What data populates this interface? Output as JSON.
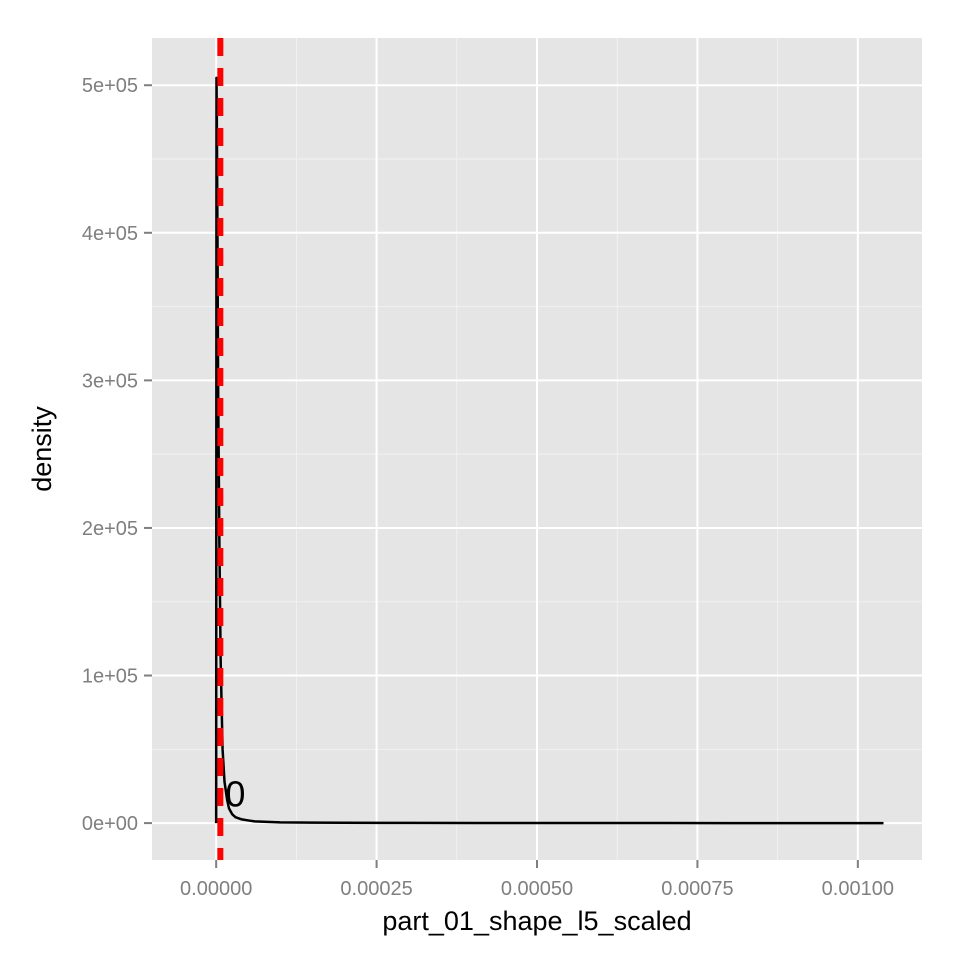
{
  "chart_data": {
    "type": "line",
    "title": "",
    "xlabel": "part_01_shape_l5_scaled",
    "ylabel": "density",
    "xlim": [
      -0.0001,
      0.0011
    ],
    "ylim": [
      -25000,
      532000
    ],
    "x_ticks": [
      {
        "value": 0.0,
        "label": "0.00000"
      },
      {
        "value": 0.00025,
        "label": "0.00025"
      },
      {
        "value": 0.0005,
        "label": "0.00050"
      },
      {
        "value": 0.00075,
        "label": "0.00075"
      },
      {
        "value": 0.001,
        "label": "0.00100"
      }
    ],
    "y_ticks": [
      {
        "value": 0,
        "label": "0e+00"
      },
      {
        "value": 100000,
        "label": "1e+05"
      },
      {
        "value": 200000,
        "label": "2e+05"
      },
      {
        "value": 300000,
        "label": "3e+05"
      },
      {
        "value": 400000,
        "label": "4e+05"
      },
      {
        "value": 500000,
        "label": "5e+05"
      }
    ],
    "grid": true,
    "background": "#e5e5e5",
    "series": [
      {
        "color": "#000000",
        "x": [
          0.0,
          5e-07,
          1e-06,
          2e-06,
          3e-06,
          5e-06,
          7e-06,
          1e-05,
          1.3e-05,
          1.7e-05,
          2e-05,
          2.5e-05,
          3e-05,
          4e-05,
          5e-05,
          6e-05,
          8e-05,
          0.0001,
          0.00015,
          0.0002,
          0.0003,
          0.0004,
          0.0005,
          0.0006,
          0.0007,
          0.0008,
          0.0009,
          0.001,
          0.00104
        ],
        "y": [
          0,
          505000,
          480000,
          400000,
          300000,
          190000,
          110000,
          50000,
          28000,
          16000,
          10000,
          6000,
          4000,
          2500,
          1800,
          1200,
          800,
          500,
          300,
          200,
          120,
          80,
          60,
          40,
          30,
          20,
          10,
          5,
          0
        ]
      }
    ],
    "vline": {
      "x": 6.5e-06,
      "color": "#ff0000",
      "style": "dashed"
    },
    "annotations": [
      {
        "text": "0",
        "x": 6.5e-06,
        "y": 20000
      }
    ]
  }
}
